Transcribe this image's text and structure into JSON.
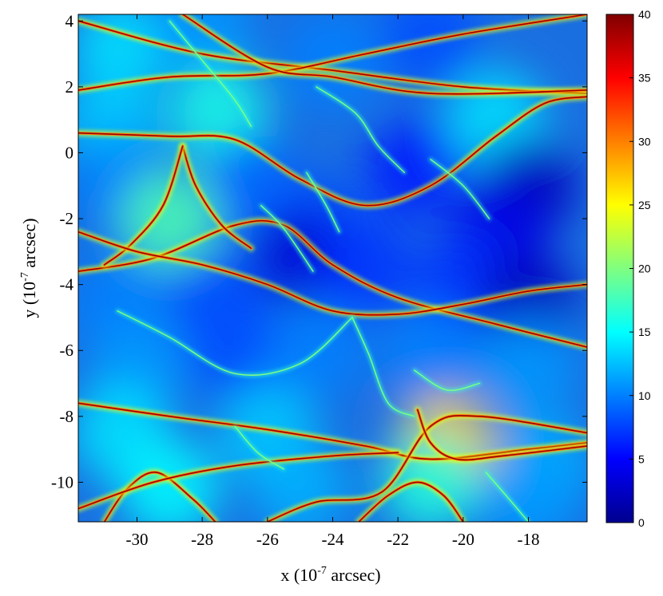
{
  "chart_data": {
    "type": "heatmap",
    "title": "",
    "xlabel": "x (10",
    "xlabel_exp": "-7",
    "xlabel_unit": " arcsec)",
    "ylabel": "y (10",
    "ylabel_exp": "-7",
    "ylabel_unit": " arcsec)",
    "xlim": [
      -31.8,
      -16.2
    ],
    "ylim": [
      -11.2,
      4.2
    ],
    "x_ticks": [
      -30,
      -28,
      -26,
      -24,
      -22,
      -20,
      -18
    ],
    "x_tick_labels": [
      "-30",
      "-28",
      "-26",
      "-24",
      "-22",
      "-20",
      "-18"
    ],
    "y_ticks": [
      4,
      2,
      0,
      -2,
      -4,
      -6,
      -8,
      -10
    ],
    "y_tick_labels": [
      "4",
      "2",
      "0",
      "-2",
      "-4",
      "-6",
      "-8",
      "-10"
    ],
    "colorbar": {
      "colormap": "jet",
      "range": [
        0,
        40
      ],
      "ticks": [
        0,
        5,
        10,
        15,
        20,
        25,
        30,
        35,
        40
      ],
      "tick_labels": [
        "0",
        "5",
        "10",
        "15",
        "20",
        "25",
        "30",
        "35",
        "40"
      ]
    },
    "regions": [
      {
        "x": -30.5,
        "y": 3.2,
        "value": 14
      },
      {
        "x": -28.0,
        "y": 3.8,
        "value": 11
      },
      {
        "x": -21.0,
        "y": 3.5,
        "value": 8
      },
      {
        "x": -24.0,
        "y": 2.8,
        "value": 10
      },
      {
        "x": -30.8,
        "y": 1.0,
        "value": 13
      },
      {
        "x": -27.5,
        "y": 1.2,
        "value": 16
      },
      {
        "x": -19.0,
        "y": 1.0,
        "value": 14
      },
      {
        "x": -30.5,
        "y": -1.0,
        "value": 10
      },
      {
        "x": -26.5,
        "y": -1.0,
        "value": 9
      },
      {
        "x": -21.5,
        "y": -0.5,
        "value": 6
      },
      {
        "x": -18.0,
        "y": -1.0,
        "value": 2
      },
      {
        "x": -19.0,
        "y": -2.5,
        "value": 4
      },
      {
        "x": -24.5,
        "y": -2.2,
        "value": 8
      },
      {
        "x": -29.0,
        "y": -2.0,
        "value": 18
      },
      {
        "x": -25.0,
        "y": -3.2,
        "value": 3
      },
      {
        "x": -23.0,
        "y": -3.5,
        "value": 7
      },
      {
        "x": -30.5,
        "y": -4.5,
        "value": 10
      },
      {
        "x": -27.5,
        "y": -4.5,
        "value": 8
      },
      {
        "x": -20.0,
        "y": -4.0,
        "value": 7
      },
      {
        "x": -18.0,
        "y": -4.5,
        "value": 2
      },
      {
        "x": -30.0,
        "y": -6.5,
        "value": 11
      },
      {
        "x": -27.0,
        "y": -6.0,
        "value": 8
      },
      {
        "x": -24.5,
        "y": -6.0,
        "value": 10
      },
      {
        "x": -21.0,
        "y": -6.2,
        "value": 10
      },
      {
        "x": -18.0,
        "y": -6.5,
        "value": 11
      },
      {
        "x": -30.5,
        "y": -8.5,
        "value": 14
      },
      {
        "x": -26.0,
        "y": -8.5,
        "value": 13
      },
      {
        "x": -20.5,
        "y": -8.8,
        "value": 27
      },
      {
        "x": -17.5,
        "y": -9.5,
        "value": 12
      },
      {
        "x": -29.0,
        "y": -10.2,
        "value": 15
      },
      {
        "x": -25.0,
        "y": -10.2,
        "value": 12
      },
      {
        "x": -21.0,
        "y": -10.0,
        "value": 16
      },
      {
        "x": -18.0,
        "y": -10.5,
        "value": 11
      }
    ],
    "caustics": [
      [
        [
          -31.8,
          4.0
        ],
        [
          -28.0,
          3.0
        ],
        [
          -24.0,
          2.5
        ],
        [
          -20.0,
          2.0
        ],
        [
          -16.2,
          1.8
        ]
      ],
      [
        [
          -31.8,
          1.9
        ],
        [
          -29.0,
          2.3
        ],
        [
          -26.0,
          2.4
        ],
        [
          -23.0,
          3.0
        ],
        [
          -20.0,
          3.6
        ],
        [
          -16.2,
          4.2
        ]
      ],
      [
        [
          -28.6,
          4.2
        ],
        [
          -26.0,
          2.6
        ],
        [
          -24.0,
          2.3
        ],
        [
          -21.0,
          1.8
        ],
        [
          -16.2,
          1.9
        ]
      ],
      [
        [
          -31.8,
          0.6
        ],
        [
          -29.0,
          0.5
        ],
        [
          -27.0,
          0.4
        ],
        [
          -25.0,
          -0.8
        ],
        [
          -23.0,
          -1.6
        ],
        [
          -21.0,
          -1.0
        ],
        [
          -19.0,
          0.5
        ],
        [
          -17.5,
          1.5
        ],
        [
          -16.2,
          1.7
        ]
      ],
      [
        [
          -31.8,
          -3.6
        ],
        [
          -29.5,
          -3.2
        ],
        [
          -27.0,
          -2.2
        ],
        [
          -25.5,
          -2.2
        ],
        [
          -24.0,
          -3.4
        ],
        [
          -22.0,
          -4.4
        ],
        [
          -19.0,
          -5.2
        ],
        [
          -16.2,
          -5.9
        ]
      ],
      [
        [
          -28.6,
          0.2
        ],
        [
          -28.2,
          -1.0
        ],
        [
          -27.4,
          -2.2
        ],
        [
          -26.5,
          -2.9
        ]
      ],
      [
        [
          -28.6,
          0.2
        ],
        [
          -29.2,
          -1.6
        ],
        [
          -30.2,
          -2.8
        ],
        [
          -31.0,
          -3.4
        ]
      ],
      [
        [
          -31.8,
          -2.4
        ],
        [
          -30.0,
          -3.0
        ],
        [
          -28.0,
          -3.4
        ],
        [
          -26.0,
          -4.0
        ],
        [
          -24.0,
          -4.8
        ],
        [
          -22.0,
          -4.9
        ],
        [
          -20.0,
          -4.6
        ],
        [
          -18.0,
          -4.2
        ],
        [
          -16.2,
          -4.0
        ]
      ],
      [
        [
          -31.8,
          -7.6
        ],
        [
          -29.0,
          -8.0
        ],
        [
          -26.0,
          -8.4
        ],
        [
          -23.0,
          -8.9
        ],
        [
          -21.0,
          -9.3
        ],
        [
          -18.0,
          -9.0
        ],
        [
          -16.2,
          -8.8
        ]
      ],
      [
        [
          -26.0,
          -11.2
        ],
        [
          -24.5,
          -10.6
        ],
        [
          -22.5,
          -10.3
        ],
        [
          -21.0,
          -8.3
        ],
        [
          -19.5,
          -8.0
        ],
        [
          -16.2,
          -8.5
        ]
      ],
      [
        [
          -21.4,
          -7.8
        ],
        [
          -21.0,
          -8.8
        ],
        [
          -20.2,
          -9.3
        ],
        [
          -18.8,
          -9.2
        ],
        [
          -16.2,
          -8.9
        ]
      ],
      [
        [
          -31.0,
          -11.2
        ],
        [
          -30.3,
          -10.2
        ],
        [
          -29.4,
          -9.7
        ],
        [
          -28.3,
          -10.5
        ],
        [
          -27.6,
          -11.2
        ]
      ],
      [
        [
          -31.8,
          -10.8
        ],
        [
          -29.5,
          -10.0
        ],
        [
          -27.0,
          -9.5
        ],
        [
          -24.0,
          -9.2
        ],
        [
          -22.0,
          -9.1
        ]
      ],
      [
        [
          -23.2,
          -11.2
        ],
        [
          -22.3,
          -10.4
        ],
        [
          -21.4,
          -10.0
        ],
        [
          -20.6,
          -10.4
        ],
        [
          -20.0,
          -11.2
        ]
      ]
    ],
    "fold_lines": [
      [
        [
          -29.0,
          4.0
        ],
        [
          -28.0,
          2.8
        ],
        [
          -27.0,
          1.6
        ],
        [
          -26.5,
          0.8
        ]
      ],
      [
        [
          -24.5,
          2.0
        ],
        [
          -23.3,
          1.2
        ],
        [
          -22.6,
          0.2
        ],
        [
          -21.8,
          -0.6
        ]
      ],
      [
        [
          -21.0,
          -0.2
        ],
        [
          -20.0,
          -1.0
        ],
        [
          -19.2,
          -2.0
        ]
      ],
      [
        [
          -24.8,
          -0.6
        ],
        [
          -24.2,
          -1.6
        ],
        [
          -23.8,
          -2.4
        ]
      ],
      [
        [
          -26.2,
          -1.6
        ],
        [
          -25.5,
          -2.3
        ],
        [
          -24.6,
          -3.6
        ]
      ],
      [
        [
          -30.6,
          -4.8
        ],
        [
          -29.0,
          -5.6
        ],
        [
          -27.0,
          -6.7
        ],
        [
          -25.0,
          -6.4
        ],
        [
          -23.4,
          -5.0
        ]
      ],
      [
        [
          -23.4,
          -5.0
        ],
        [
          -22.9,
          -6.1
        ],
        [
          -22.3,
          -7.6
        ],
        [
          -21.5,
          -8.0
        ]
      ],
      [
        [
          -21.5,
          -6.6
        ],
        [
          -20.5,
          -7.2
        ],
        [
          -19.5,
          -7.0
        ]
      ],
      [
        [
          -27.0,
          -8.3
        ],
        [
          -26.3,
          -9.1
        ],
        [
          -25.5,
          -9.6
        ]
      ],
      [
        [
          -19.3,
          -9.7
        ],
        [
          -18.6,
          -10.5
        ],
        [
          -18.0,
          -11.2
        ]
      ]
    ]
  }
}
